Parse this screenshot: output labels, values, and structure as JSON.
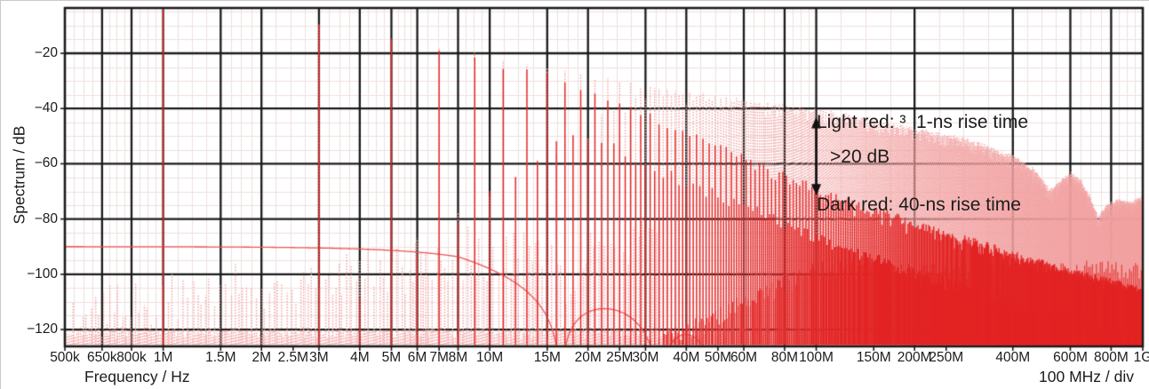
{
  "chart_data": {
    "type": "line",
    "title": "",
    "xlabel": "Frequency / Hz",
    "ylabel": "Spectrum / dB",
    "scale_note": "100 MHz / div",
    "x_scale": "log",
    "x_range_hz": [
      500000,
      1000000000
    ],
    "y_view_db": [
      -126.1,
      -3.6
    ],
    "y_ticks_db": [
      -20,
      -40,
      -60,
      -80,
      -100,
      -120
    ],
    "y_tick_labels": [
      "−20",
      "−40",
      "−60",
      "−80",
      "−100",
      "−120"
    ],
    "x_ticks": [
      {
        "hz": 500000,
        "label": "500k"
      },
      {
        "hz": 650000,
        "label": "650k"
      },
      {
        "hz": 800000,
        "label": "800k"
      },
      {
        "hz": 1000000,
        "label": "1M"
      },
      {
        "hz": 1500000,
        "label": "1.5M"
      },
      {
        "hz": 2000000,
        "label": "2M"
      },
      {
        "hz": 2500000,
        "label": "2.5M"
      },
      {
        "hz": 3000000,
        "label": "3M"
      },
      {
        "hz": 4000000,
        "label": "4M"
      },
      {
        "hz": 5000000,
        "label": "5M"
      },
      {
        "hz": 6000000,
        "label": "6M"
      },
      {
        "hz": 7000000,
        "label": "7M"
      },
      {
        "hz": 8000000,
        "label": "8M"
      },
      {
        "hz": 10000000,
        "label": "10M"
      },
      {
        "hz": 15000000,
        "label": "15M"
      },
      {
        "hz": 20000000,
        "label": "20M"
      },
      {
        "hz": 25000000,
        "label": "25M"
      },
      {
        "hz": 30000000,
        "label": "30M"
      },
      {
        "hz": 40000000,
        "label": "40M"
      },
      {
        "hz": 50000000,
        "label": "50M"
      },
      {
        "hz": 60000000,
        "label": "60M"
      },
      {
        "hz": 80000000,
        "label": "80M"
      },
      {
        "hz": 100000000,
        "label": "100M"
      },
      {
        "hz": 150000000,
        "label": "150M"
      },
      {
        "hz": 200000000,
        "label": "200M"
      },
      {
        "hz": 250000000,
        "label": "250M"
      },
      {
        "hz": 400000000,
        "label": "400M"
      },
      {
        "hz": 600000000,
        "label": "600M"
      },
      {
        "hz": 800000000,
        "label": "800M"
      },
      {
        "hz": 1000000000,
        "label": "1G"
      }
    ],
    "major_gridlines_hz": [
      650000,
      800000,
      1000000,
      1500000,
      2000000,
      3000000,
      4000000,
      5000000,
      6000000,
      8000000,
      10000000,
      15000000,
      20000000,
      30000000,
      40000000,
      60000000,
      80000000,
      100000000,
      200000000,
      400000000,
      600000000,
      800000000
    ],
    "legend": {
      "lines": [
        "Light red: ³  1-ns rise time",
        "Dark red: 40-ns rise time"
      ]
    },
    "annotation": {
      "label": ">20 dB",
      "arrow_x_hz": 100000000,
      "arrow_from_db": -43,
      "arrow_to_db": -71.5
    },
    "colors": {
      "light_red": "#f2a0a0",
      "dark_red": "#e32424",
      "floor_curve": "#ee5555",
      "dark_noise": "#e84444",
      "text": "#1c1c1c",
      "grid_major": "#1a1a1a",
      "grid_minor": "#f0dfdf",
      "background": "#ffffff"
    },
    "harmonic_comb": {
      "fundamental_hz": 1000000,
      "strong_harmonics": "odd",
      "even_suppression": {
        "light": {
          "base_db": 2,
          "slope_db_per_decade": 100,
          "corner_hz": 30000000
        },
        "dark": {
          "base_db": 18,
          "slope_db_per_decade": 120,
          "corner_hz": 18000000
        }
      }
    },
    "series": [
      {
        "name": "1-ns rise time",
        "color_key": "light_red",
        "line_style": "dotted",
        "envelope_db_points": [
          [
            1000000,
            -1
          ],
          [
            2000000,
            -7
          ],
          [
            3000000,
            -10
          ],
          [
            5000000,
            -14
          ],
          [
            7000000,
            -17.5
          ],
          [
            10000000,
            -21
          ],
          [
            15000000,
            -26
          ],
          [
            20000000,
            -28.5
          ],
          [
            30000000,
            -32
          ],
          [
            40000000,
            -34
          ],
          [
            50000000,
            -36
          ],
          [
            70000000,
            -38.5
          ],
          [
            100000000,
            -40.5
          ],
          [
            150000000,
            -44.5
          ],
          [
            200000000,
            -47.5
          ],
          [
            300000000,
            -52
          ],
          [
            400000000,
            -57.5
          ],
          [
            470000000,
            -63
          ],
          [
            520000000,
            -70
          ],
          [
            560000000,
            -66.5
          ],
          [
            600000000,
            -63.5
          ],
          [
            650000000,
            -67
          ],
          [
            700000000,
            -74
          ],
          [
            730000000,
            -80
          ],
          [
            780000000,
            -75
          ],
          [
            850000000,
            -73.5
          ],
          [
            920000000,
            -74.5
          ],
          [
            1000000000,
            -72.5
          ]
        ]
      },
      {
        "name": "40-ns rise time",
        "color_key": "dark_red",
        "line_style": "solid",
        "envelope_db_points": [
          [
            1000000,
            -1
          ],
          [
            3000000,
            -10
          ],
          [
            5000000,
            -14
          ],
          [
            7000000,
            -18.5
          ],
          [
            9000000,
            -22
          ],
          [
            11000000,
            -24.5
          ],
          [
            15000000,
            -28
          ],
          [
            21000000,
            -33.5
          ],
          [
            31000000,
            -43
          ],
          [
            41000000,
            -49.5
          ],
          [
            51000000,
            -54
          ],
          [
            61000000,
            -58
          ],
          [
            81000000,
            -64.5
          ],
          [
            101000000,
            -69.5
          ],
          [
            151000000,
            -76.5
          ],
          [
            201000000,
            -82
          ],
          [
            301000000,
            -88
          ],
          [
            401000000,
            -93
          ],
          [
            601000000,
            -99
          ],
          [
            801000000,
            -103
          ],
          [
            1000000000,
            -106
          ]
        ]
      }
    ],
    "floor_curve": {
      "flat_db": -90,
      "sinc_null_hz": 16500000,
      "extra_rolloff_corner_hz": 8000000
    },
    "noise": {
      "baseline_db": -121,
      "fuzz_top_at_1mhz_db": -104,
      "fuzz_slope_db_per_decade": 14,
      "fuzz_notch_hz": 17500000,
      "fuzz_max_hz": 34000000,
      "rising_band": {
        "start_hz": 26000000,
        "ref_hz": 25000000,
        "level_at_ref_db": -128,
        "slope_db_per_decade": 55,
        "cap_db": -95
      }
    }
  }
}
